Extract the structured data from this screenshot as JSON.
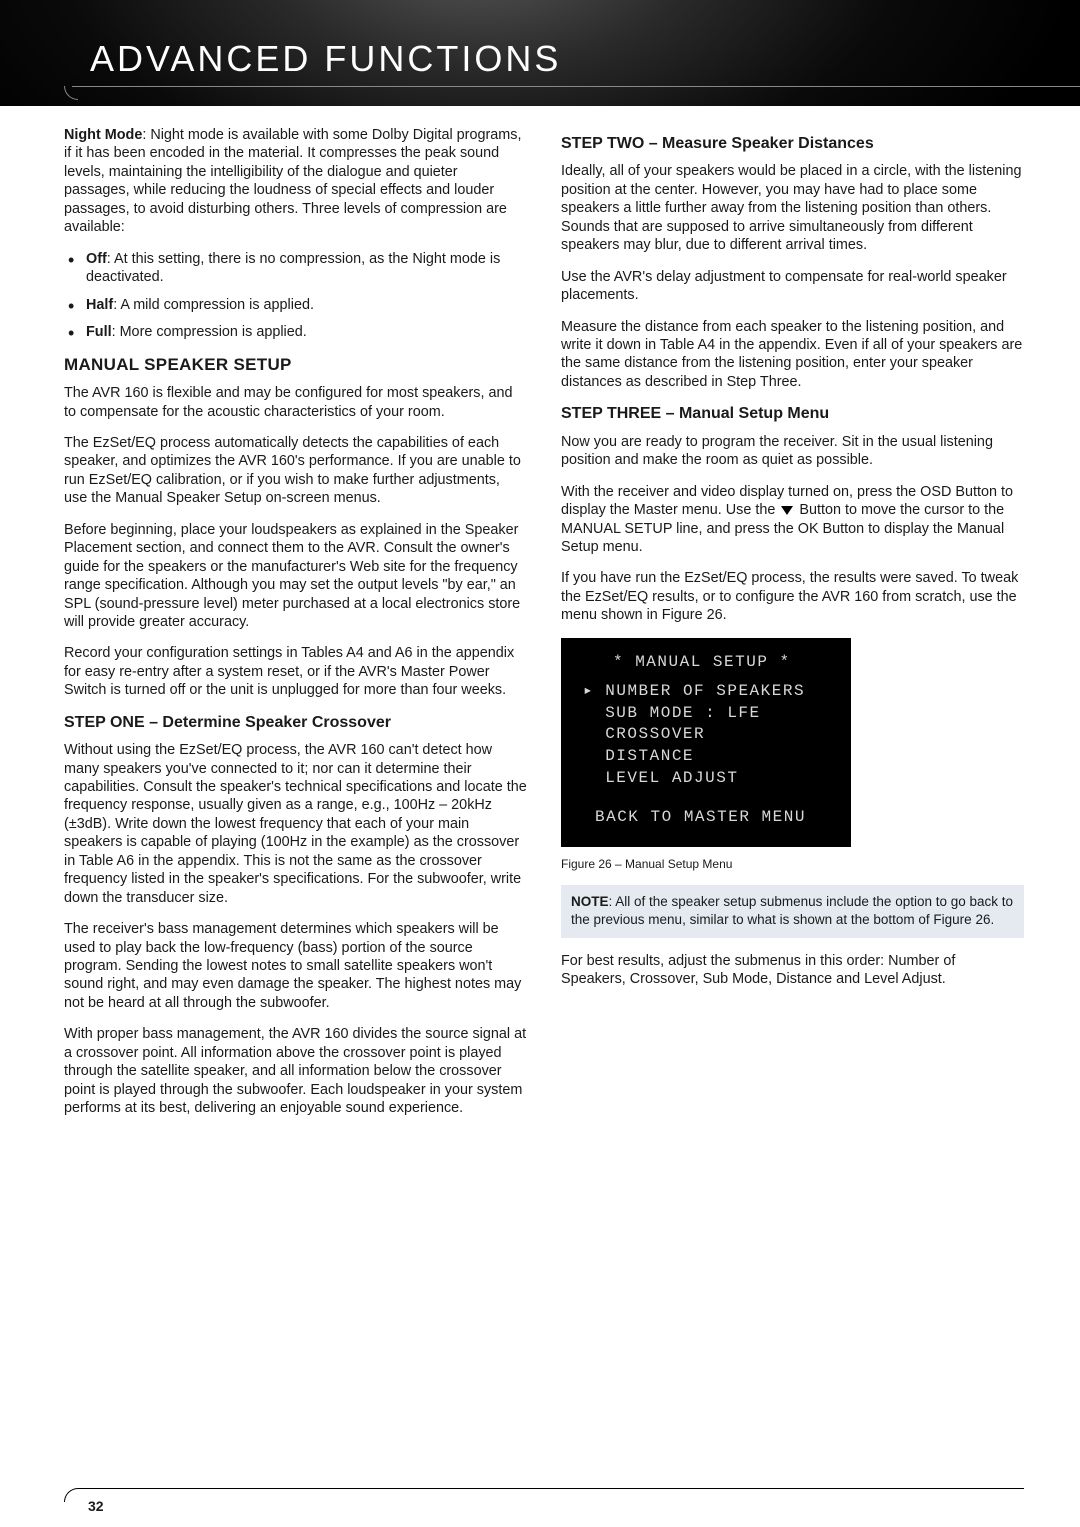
{
  "header": {
    "title": "ADVANCED FUNCTIONS"
  },
  "left": {
    "nightMode": {
      "label": "Night Mode",
      "body": ": Night mode is available with some Dolby Digital programs, if it has been encoded in the material. It compresses the peak sound levels, maintaining the intelligibility of the dialogue and quieter passages, while reducing the loudness of special effects and louder passages, to avoid disturbing others. Three levels of compression are available:"
    },
    "bullets": [
      {
        "label": "Off",
        "body": ": At this setting, there is no compression, as the Night mode is deactivated."
      },
      {
        "label": "Half",
        "body": ": A mild compression is applied."
      },
      {
        "label": "Full",
        "body": ": More compression is applied."
      }
    ],
    "h2": "MANUAL SPEAKER SETUP",
    "p1": "The AVR 160 is flexible and may be configured for most speakers, and to compensate for the acoustic characteristics of your room.",
    "p2": "The EzSet/EQ process automatically detects the capabilities of each speaker, and optimizes the AVR 160's performance. If you are unable to run EzSet/EQ calibration, or if you wish to make further adjustments, use the Manual Speaker Setup on-screen menus.",
    "p3": "Before beginning, place your loudspeakers as explained in the Speaker Placement section, and connect them to the AVR. Consult the owner's guide for the speakers or the manufacturer's Web site for the frequency range specification. Although you may set the output levels \"by ear,\" an SPL (sound-pressure level) meter purchased at a local electronics store will provide greater accuracy.",
    "p4": "Record your configuration settings in Tables A4 and A6 in the appendix for easy re-entry after a system reset, or if the AVR's Master Power Switch is turned off or the unit is unplugged for more than four weeks.",
    "h3a": "STEP ONE – Determine Speaker Crossover",
    "p5": "Without using the EzSet/EQ process, the AVR 160 can't detect how many speakers you've connected to it; nor can it determine their capabilities. Consult the speaker's technical specifications and locate the frequency response, usually given as a range, e.g., 100Hz – 20kHz (±3dB). Write down the lowest frequency that each of your main speakers is capable of playing (100Hz in the example) as the crossover in Table A6 in the appendix. This is not the same as the crossover frequency listed in the speaker's specifications. For the subwoofer, write down the transducer size.",
    "p6": "The receiver's bass management determines which speakers will be used to play back the low-frequency (bass) portion of the source program. Sending the lowest notes to small satellite speakers won't sound right, and may even damage the speaker. The highest notes may not be heard at all through the subwoofer.",
    "p7": "With proper bass management, the AVR 160 divides the source signal at a crossover point. All information above the crossover point is played through the satellite speaker, and all information below the crossover point is played through the subwoofer. Each loudspeaker in your system performs at its best, delivering an enjoyable sound experience."
  },
  "right": {
    "h3a": "STEP TWO – Measure Speaker Distances",
    "p1": "Ideally, all of your speakers would be placed in a circle, with the listening position at the center. However, you may have had to place some speakers a little further away from the listening position than others. Sounds that are supposed to arrive simultaneously from different speakers may blur, due to different arrival times.",
    "p2": "Use the AVR's delay adjustment to compensate for real-world speaker placements.",
    "p3": "Measure the distance from each speaker to the listening position, and write it down in Table A4 in the appendix. Even if all of your speakers are the same distance from the listening position, enter your speaker distances as described in Step Three.",
    "h3b": "STEP THREE – Manual Setup Menu",
    "p4": "Now you are ready to program the receiver. Sit in the usual listening position and make the room as quiet as possible.",
    "p5a": "With the receiver and video display turned on, press the OSD Button to display the Master menu. Use the ",
    "p5b": " Button to move the cursor to the MANUAL SETUP line, and press the OK Button to display the Manual Setup menu.",
    "p6": "If you have run the EzSet/EQ process, the results were saved. To tweak the EzSet/EQ results, or to configure the AVR 160 from scratch, use the menu shown in Figure 26.",
    "osd": {
      "title": "* MANUAL SETUP *",
      "lines": [
        "▸ NUMBER OF SPEAKERS",
        "  SUB MODE : LFE",
        "  CROSSOVER",
        "  DISTANCE",
        "  LEVEL ADJUST"
      ],
      "back": "BACK TO MASTER MENU"
    },
    "caption": "Figure 26 – Manual Setup Menu",
    "noteLabel": "NOTE",
    "noteBody": ": All of the speaker setup submenus include the option to go back to the previous menu, similar to what is shown at the bottom of Figure 26.",
    "p7": "For best results, adjust the submenus in this order: Number of Speakers, Crossover, Sub Mode, Distance and Level Adjust."
  },
  "pageNumber": "32"
}
